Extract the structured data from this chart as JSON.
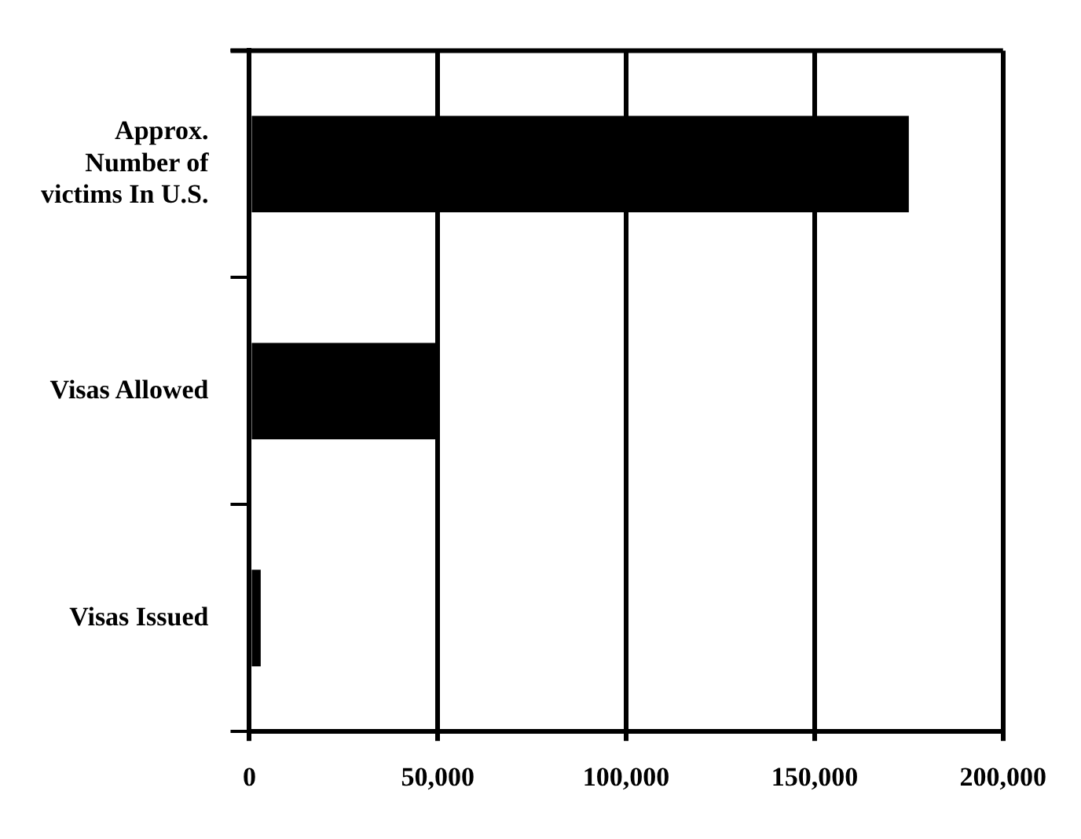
{
  "chart_data": {
    "type": "bar",
    "orientation": "horizontal",
    "categories": [
      "Approx.\nNumber of\nvictims In U.S.",
      "Visas Allowed",
      "Visas Issued"
    ],
    "values": [
      175000,
      50000,
      3000
    ],
    "color": "#000000",
    "xlim": [
      0,
      200000
    ],
    "xticks": [
      {
        "value": 0,
        "label": "0"
      },
      {
        "value": 50000,
        "label": "50,000"
      },
      {
        "value": 100000,
        "label": "100,000"
      },
      {
        "value": 150000,
        "label": "150,000"
      },
      {
        "value": 200000,
        "label": "200,000"
      }
    ],
    "grid": "x",
    "legend": false
  }
}
